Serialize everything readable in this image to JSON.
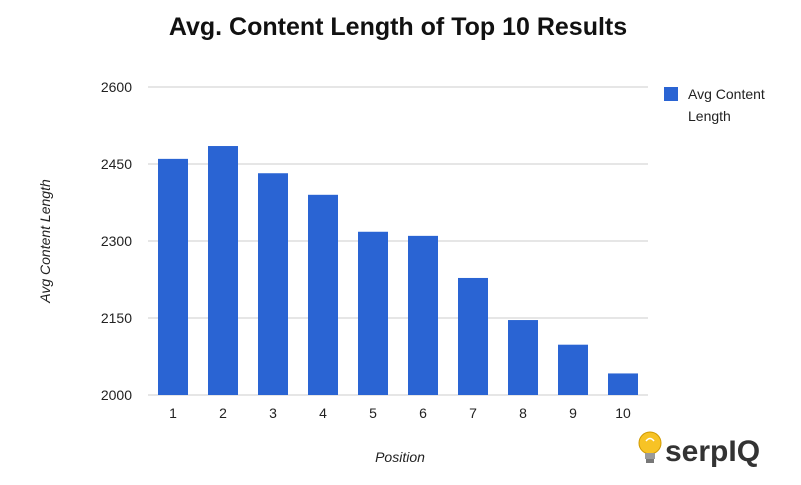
{
  "colors": {
    "bar": "#2a64d3",
    "grid": "#cccccc",
    "logo_text": "#333333",
    "bulb": "#f7c325"
  },
  "logo": {
    "text": "serpIQ",
    "icon": "lightbulb-icon"
  },
  "chart_data": {
    "type": "bar",
    "title": "Avg. Content Length of Top 10 Results",
    "xlabel": "Position",
    "ylabel": "Avg Content Length",
    "categories": [
      "1",
      "2",
      "3",
      "4",
      "5",
      "6",
      "7",
      "8",
      "9",
      "10"
    ],
    "series": [
      {
        "name": "Avg Content Length",
        "values": [
          2460,
          2485,
          2432,
          2390,
          2318,
          2310,
          2228,
          2146,
          2098,
          2042
        ]
      }
    ],
    "ylim": [
      2000,
      2600
    ],
    "yticks": [
      2000,
      2150,
      2300,
      2450,
      2600
    ],
    "grid": true,
    "legend": "right"
  }
}
